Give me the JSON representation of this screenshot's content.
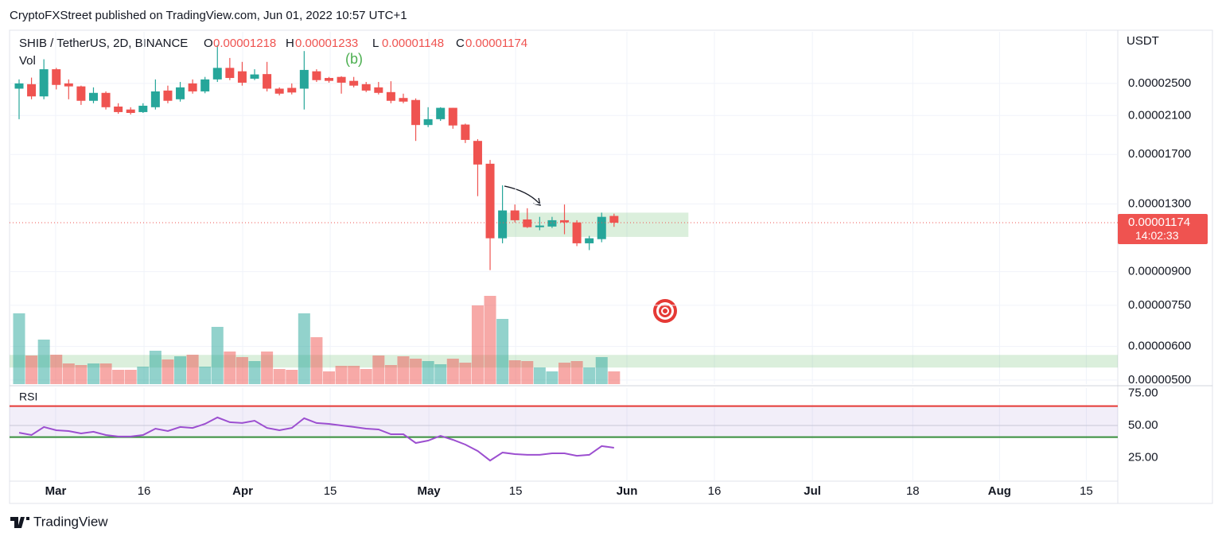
{
  "header": "CryptoFXStreet published on TradingView.com, Jun 01, 2022 10:57 UTC+1",
  "footer": "TradingView",
  "chart_data": {
    "type": "candlestick",
    "symbol": "SHIB / TetherUS, 2D, BINANCE",
    "ohlc_legend": [
      {
        "key": "O",
        "value": "0.00001218"
      },
      {
        "key": "H",
        "value": "0.00001233"
      },
      {
        "key": "L",
        "value": "0.00001148"
      },
      {
        "key": "C",
        "value": "0.00001174"
      }
    ],
    "volume_label": "Vol",
    "rsi_label": "RSI",
    "currency": "USDT",
    "wave_label": "(b)",
    "countdown": "14:02:33",
    "last_price": {
      "value": 1.174e-05,
      "label": "0.00001174"
    },
    "log_scale": true,
    "grid": true,
    "up_color": "#26a69a",
    "down_color": "#ef5350",
    "rsi_color": "#9c4fd0",
    "categories": [
      null,
      null,
      null,
      null,
      null,
      null,
      null,
      null,
      null,
      null,
      null,
      null,
      null,
      null,
      null,
      null,
      null,
      null,
      null,
      null,
      null,
      null,
      null,
      null,
      null,
      null,
      null,
      null,
      null,
      null,
      null,
      null,
      null,
      null,
      null,
      null,
      null,
      null,
      null,
      null,
      null,
      null,
      null,
      null,
      null,
      null,
      null,
      null,
      null
    ],
    "open": [
      2.43e-05,
      2.49e-05,
      2.33e-05,
      2.7e-05,
      2.5e-05,
      2.46e-05,
      2.275e-05,
      2.375e-05,
      2.205e-05,
      2.17e-05,
      2.14e-05,
      2.197e-05,
      2.405e-05,
      2.294e-05,
      2.5e-05,
      2.394e-05,
      2.555e-05,
      2.72e-05,
      2.67e-05,
      2.565e-05,
      2.63e-05,
      2.43e-05,
      2.44e-05,
      2.43e-05,
      2.67e-05,
      2.575e-05,
      2.59e-05,
      2.535e-05,
      2.49e-05,
      2.447e-05,
      2.385e-05,
      2.31e-05,
      2.285e-05,
      1.995e-05,
      2.059e-05,
      2.19e-05,
      2e-05,
      1.83e-05,
      1.617e-05,
      1.079e-05,
      1.255e-05,
      1.195e-05,
      1.146e-05,
      1.15e-05,
      1.19e-05,
      1.176e-05,
      1.05e-05,
      1.074e-05,
      1.218e-05
    ],
    "high": [
      2.555e-05,
      2.58e-05,
      2.85e-05,
      2.72e-05,
      2.555e-05,
      2.47e-05,
      2.447e-05,
      2.394e-05,
      2.245e-05,
      2.197e-05,
      2.245e-05,
      2.555e-05,
      2.47e-05,
      2.52e-05,
      2.555e-05,
      2.59e-05,
      3.08e-05,
      2.87e-05,
      2.81e-05,
      2.7e-05,
      2.81e-05,
      2.447e-05,
      2.5e-05,
      2.98e-05,
      2.7e-05,
      2.59e-05,
      2.6e-05,
      2.59e-05,
      2.52e-05,
      2.52e-05,
      2.53e-05,
      2.365e-05,
      2.305e-05,
      2.197e-05,
      2.197e-05,
      2.19e-05,
      2.01e-05,
      1.848e-05,
      1.65e-05,
      1.438e-05,
      1.296e-05,
      1.27e-05,
      1.212e-05,
      1.212e-05,
      1.296e-05,
      1.19e-05,
      1.093e-05,
      1.24e-05,
      1.233e-05
    ],
    "low": [
      2.059e-05,
      2.294e-05,
      2.294e-05,
      2.42e-05,
      2.294e-05,
      2.225e-05,
      2.245e-05,
      2.17e-05,
      2.12e-05,
      2.112e-05,
      2.13e-05,
      2.17e-05,
      2.245e-05,
      2.265e-05,
      2.365e-05,
      2.37e-05,
      2.52e-05,
      2.545e-05,
      2.47e-05,
      2.545e-05,
      2.394e-05,
      2.343e-05,
      2.355e-05,
      2.17e-05,
      2.52e-05,
      2.51e-05,
      2.365e-05,
      2.447e-05,
      2.385e-05,
      2.355e-05,
      2.245e-05,
      2.245e-05,
      1.83e-05,
      1.972e-05,
      2.04e-05,
      1.955e-05,
      1.809e-05,
      1.356e-05,
      9.08e-06,
      1.05e-05,
      1.176e-05,
      1.141e-05,
      1.127e-05,
      1.141e-05,
      1.103e-05,
      1.034e-05,
      1.012e-05,
      1.056e-05,
      1.148e-05
    ],
    "close": [
      2.5e-05,
      2.33e-05,
      2.7e-05,
      2.48e-05,
      2.46e-05,
      2.275e-05,
      2.375e-05,
      2.197e-05,
      2.14e-05,
      2.13e-05,
      2.215e-05,
      2.394e-05,
      2.275e-05,
      2.447e-05,
      2.394e-05,
      2.555e-05,
      2.72e-05,
      2.575e-05,
      2.51e-05,
      2.625e-05,
      2.43e-05,
      2.365e-05,
      2.38e-05,
      2.69e-05,
      2.545e-05,
      2.535e-05,
      2.51e-05,
      2.47e-05,
      2.405e-05,
      2.375e-05,
      2.275e-05,
      2.265e-05,
      1.995e-05,
      2.059e-05,
      2.19e-05,
      1.99e-05,
      1.84e-05,
      1.61e-05,
      1.079e-05,
      1.255e-05,
      1.19e-05,
      1.146e-05,
      1.156e-05,
      1.19e-05,
      1.176e-05,
      1.05e-05,
      1.079e-05,
      1.212e-05,
      1.174e-05
    ],
    "volume": [
      89,
      36,
      56,
      37,
      26,
      24,
      26,
      26,
      18,
      18,
      22,
      42,
      31,
      35,
      37,
      22,
      72,
      41,
      34,
      29,
      41,
      19,
      18,
      89,
      59,
      16,
      23,
      23,
      19,
      36,
      24,
      35,
      32,
      29,
      25,
      32,
      27,
      99,
      111,
      82,
      30,
      29,
      21,
      16,
      27,
      29,
      21,
      34,
      16
    ],
    "vlim": [
      0,
      120
    ],
    "rsi": [
      44.4,
      42.6,
      48.8,
      46.3,
      45.7,
      43.8,
      45.1,
      42.6,
      41.4,
      41.4,
      42.6,
      47.5,
      45.7,
      48.8,
      48.1,
      51.2,
      56.2,
      52.5,
      51.9,
      53.7,
      48.1,
      46.3,
      48.1,
      55.6,
      51.9,
      51.2,
      50,
      48.8,
      47.5,
      46.9,
      43.2,
      43.2,
      36.4,
      38.3,
      42.0,
      38.9,
      35.2,
      30.2,
      22.8,
      29.0,
      27.8,
      27.2,
      27.2,
      28.4,
      28.4,
      26.5,
      27.2,
      34.0,
      32.7
    ],
    "rsi_upper": 65,
    "rsi_middle": 50,
    "rsi_lower": 41,
    "rsi_ylim": [
      6.8,
      79.0
    ],
    "rsi_yticks": [
      {
        "value": 75,
        "label": "75.00"
      },
      {
        "value": 50,
        "label": "50.00"
      },
      {
        "value": 25,
        "label": "25.00"
      }
    ],
    "xlim": [
      -0.77,
      88.64
    ],
    "xticks": [
      {
        "value": 2.95,
        "label": "Mar"
      },
      {
        "value": 10.08,
        "label": "16"
      },
      {
        "value": 18.04,
        "label": "Apr"
      },
      {
        "value": 25.1,
        "label": "15"
      },
      {
        "value": 33.06,
        "label": "May"
      },
      {
        "value": 40.06,
        "label": "15"
      },
      {
        "value": 49.04,
        "label": "Jun"
      },
      {
        "value": 56.1,
        "label": "16"
      },
      {
        "value": 64.0,
        "label": "Jul"
      },
      {
        "value": 72.1,
        "label": "18"
      },
      {
        "value": 79.1,
        "label": "Aug"
      },
      {
        "value": 86.1,
        "label": "15"
      }
    ],
    "ylim": [
      4.89e-06,
      3.308e-05
    ],
    "yticks": [
      {
        "value": 2.5e-05,
        "label": "0.00002500"
      },
      {
        "value": 2.1e-05,
        "label": "0.00002100"
      },
      {
        "value": 1.7e-05,
        "label": "0.00001700"
      },
      {
        "value": 1.3e-05,
        "label": "0.00001300"
      },
      {
        "value": 9e-06,
        "label": "0.00000900"
      },
      {
        "value": 7.5e-06,
        "label": "0.00000750"
      },
      {
        "value": 6e-06,
        "label": "0.00000600"
      },
      {
        "value": 5e-06,
        "label": "0.00000500"
      }
    ],
    "zones": [
      {
        "x": [
          39.0,
          54.0
        ],
        "y": [
          1.24e-05,
          1.087e-05
        ]
      },
      {
        "x": [
          -0.77,
          88.64
        ],
        "y": [
          5.73e-06,
          5.35e-06
        ]
      }
    ]
  }
}
